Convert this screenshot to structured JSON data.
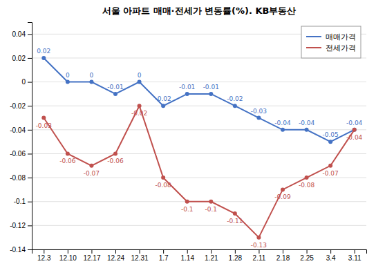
{
  "chart_data": {
    "type": "line",
    "title": "서울 아파트 매매·전세가 변동률(%). KB부동산",
    "categories": [
      "12.3",
      "12.10",
      "12.17",
      "12.24",
      "12.31",
      "1.7",
      "1.14",
      "1.21",
      "1.28",
      "2.11",
      "2.18",
      "2.25",
      "3.4",
      "3.11"
    ],
    "series": [
      {
        "name": "매매가격",
        "color": "#4472C4",
        "values": [
          0.02,
          0,
          0,
          -0.01,
          0,
          -0.02,
          -0.01,
          -0.01,
          -0.02,
          -0.03,
          -0.04,
          -0.04,
          -0.05,
          -0.04
        ]
      },
      {
        "name": "전세가격",
        "color": "#C0504D",
        "values": [
          -0.03,
          -0.06,
          -0.07,
          -0.06,
          -0.02,
          -0.08,
          -0.1,
          -0.1,
          -0.11,
          -0.13,
          -0.09,
          -0.08,
          -0.07,
          -0.04
        ]
      }
    ],
    "ylim": [
      -0.14,
      0.05
    ],
    "yticks": [
      -0.14,
      -0.12,
      -0.1,
      -0.08,
      -0.06,
      -0.04,
      -0.02,
      0,
      0.02,
      0.04
    ],
    "grid": true,
    "legend": "upper right",
    "data_labels": true,
    "marker": "circle"
  }
}
